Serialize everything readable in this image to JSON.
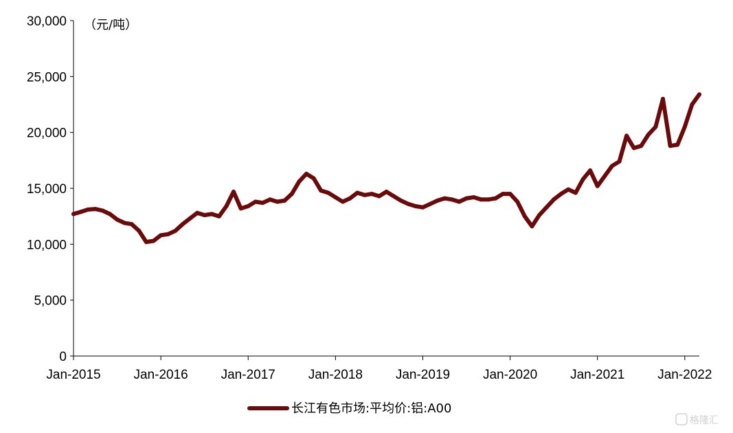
{
  "chart_data": {
    "type": "line",
    "unit_label": "（元/吨）",
    "ylim": [
      0,
      30000
    ],
    "y_ticks": [
      {
        "value": 0,
        "label": "0"
      },
      {
        "value": 5000,
        "label": "5,000"
      },
      {
        "value": 10000,
        "label": "10,000"
      },
      {
        "value": 15000,
        "label": "15,000"
      },
      {
        "value": 20000,
        "label": "20,000"
      },
      {
        "value": 25000,
        "label": "25,000"
      },
      {
        "value": 30000,
        "label": "30,000"
      }
    ],
    "xlim": [
      "2015-01",
      "2022-03"
    ],
    "x_ticks": [
      {
        "value": "2015-01",
        "label": "Jan-2015"
      },
      {
        "value": "2016-01",
        "label": "Jan-2016"
      },
      {
        "value": "2017-01",
        "label": "Jan-2017"
      },
      {
        "value": "2018-01",
        "label": "Jan-2018"
      },
      {
        "value": "2019-01",
        "label": "Jan-2019"
      },
      {
        "value": "2020-01",
        "label": "Jan-2020"
      },
      {
        "value": "2021-01",
        "label": "Jan-2021"
      },
      {
        "value": "2022-01",
        "label": "Jan-2022"
      }
    ],
    "legend_position": "bottom-center",
    "grid": false,
    "series": [
      {
        "name": "长江有色市场:平均价:铝:A00",
        "color": "#6b0a0a",
        "x": [
          "2015-01",
          "2015-02",
          "2015-03",
          "2015-04",
          "2015-05",
          "2015-06",
          "2015-07",
          "2015-08",
          "2015-09",
          "2015-10",
          "2015-11",
          "2015-12",
          "2016-01",
          "2016-02",
          "2016-03",
          "2016-04",
          "2016-05",
          "2016-06",
          "2016-07",
          "2016-08",
          "2016-09",
          "2016-10",
          "2016-11",
          "2016-12",
          "2017-01",
          "2017-02",
          "2017-03",
          "2017-04",
          "2017-05",
          "2017-06",
          "2017-07",
          "2017-08",
          "2017-09",
          "2017-10",
          "2017-11",
          "2017-12",
          "2018-01",
          "2018-02",
          "2018-03",
          "2018-04",
          "2018-05",
          "2018-06",
          "2018-07",
          "2018-08",
          "2018-09",
          "2018-10",
          "2018-11",
          "2018-12",
          "2019-01",
          "2019-02",
          "2019-03",
          "2019-04",
          "2019-05",
          "2019-06",
          "2019-07",
          "2019-08",
          "2019-09",
          "2019-10",
          "2019-11",
          "2019-12",
          "2020-01",
          "2020-02",
          "2020-03",
          "2020-04",
          "2020-05",
          "2020-06",
          "2020-07",
          "2020-08",
          "2020-09",
          "2020-10",
          "2020-11",
          "2020-12",
          "2021-01",
          "2021-02",
          "2021-03",
          "2021-04",
          "2021-05",
          "2021-06",
          "2021-07",
          "2021-08",
          "2021-09",
          "2021-10",
          "2021-11",
          "2021-12",
          "2022-01",
          "2022-02",
          "2022-03"
        ],
        "values": [
          12700,
          12900,
          13100,
          13150,
          13000,
          12700,
          12200,
          11900,
          11800,
          11200,
          10200,
          10300,
          10800,
          10900,
          11200,
          11800,
          12300,
          12800,
          12600,
          12700,
          12500,
          13400,
          14700,
          13200,
          13400,
          13800,
          13700,
          14000,
          13800,
          13900,
          14500,
          15600,
          16300,
          15900,
          14800,
          14600,
          14200,
          13800,
          14100,
          14600,
          14400,
          14500,
          14300,
          14700,
          14300,
          13900,
          13600,
          13400,
          13300,
          13600,
          13900,
          14100,
          14000,
          13800,
          14100,
          14200,
          14000,
          14000,
          14100,
          14500,
          14500,
          13800,
          12500,
          11600,
          12600,
          13300,
          14000,
          14500,
          14900,
          14600,
          15800,
          16600,
          15200,
          16100,
          17000,
          17400,
          19700,
          18600,
          18800,
          19800,
          20500,
          23000,
          18800,
          18900,
          20500,
          22500,
          23400
        ]
      }
    ]
  },
  "watermark": "格隆汇"
}
